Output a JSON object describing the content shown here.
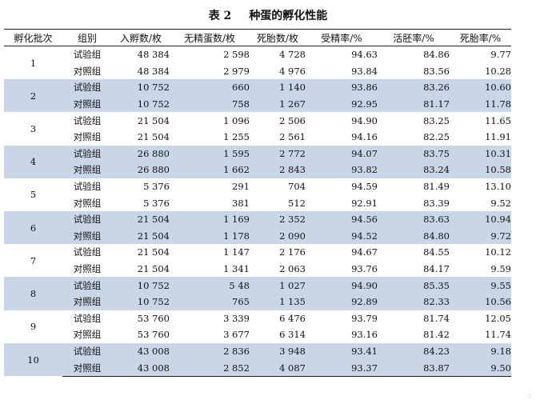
{
  "caption": {
    "number": "表 2",
    "title": "种蛋的孵化性能"
  },
  "headers": [
    "孵化批次",
    "组别",
    "入孵数/枚",
    "无精蛋数/枚",
    "死胎数/枚",
    "受精率/%",
    "活胚率/%",
    "死胎率/%"
  ],
  "batches": [
    {
      "batch": "1",
      "rows": [
        {
          "group": "试验组",
          "hatched": "48 384",
          "infertile": "2 598",
          "dead": "4 728",
          "fertility": "94.63",
          "live_embryo": "84.86",
          "mortality": "9.77"
        },
        {
          "group": "对照组",
          "hatched": "48 384",
          "infertile": "2 979",
          "dead": "4 976",
          "fertility": "93.84",
          "live_embryo": "83.56",
          "mortality": "10.28"
        }
      ]
    },
    {
      "batch": "2",
      "rows": [
        {
          "group": "试验组",
          "hatched": "10 752",
          "infertile": "660",
          "dead": "1 140",
          "fertility": "93.86",
          "live_embryo": "83.26",
          "mortality": "10.60"
        },
        {
          "group": "对照组",
          "hatched": "10 752",
          "infertile": "758",
          "dead": "1 267",
          "fertility": "92.95",
          "live_embryo": "81.17",
          "mortality": "11.78"
        }
      ]
    },
    {
      "batch": "3",
      "rows": [
        {
          "group": "试验组",
          "hatched": "21 504",
          "infertile": "1 096",
          "dead": "2 506",
          "fertility": "94.90",
          "live_embryo": "83.25",
          "mortality": "11.65"
        },
        {
          "group": "对照组",
          "hatched": "21 504",
          "infertile": "1 255",
          "dead": "2 561",
          "fertility": "94.16",
          "live_embryo": "82.25",
          "mortality": "11.91"
        }
      ]
    },
    {
      "batch": "4",
      "rows": [
        {
          "group": "试验组",
          "hatched": "26 880",
          "infertile": "1 595",
          "dead": "2 772",
          "fertility": "94.07",
          "live_embryo": "83.75",
          "mortality": "10.31"
        },
        {
          "group": "对照组",
          "hatched": "26 880",
          "infertile": "1 662",
          "dead": "2 843",
          "fertility": "93.82",
          "live_embryo": "83.24",
          "mortality": "10.58"
        }
      ]
    },
    {
      "batch": "5",
      "rows": [
        {
          "group": "试验组",
          "hatched": "5 376",
          "infertile": "291",
          "dead": "704",
          "fertility": "94.59",
          "live_embryo": "81.49",
          "mortality": "13.10"
        },
        {
          "group": "对照组",
          "hatched": "5 376",
          "infertile": "381",
          "dead": "512",
          "fertility": "92.91",
          "live_embryo": "83.39",
          "mortality": "9.52"
        }
      ]
    },
    {
      "batch": "6",
      "rows": [
        {
          "group": "试验组",
          "hatched": "21 504",
          "infertile": "1 169",
          "dead": "2 352",
          "fertility": "94.56",
          "live_embryo": "83.63",
          "mortality": "10.94"
        },
        {
          "group": "对照组",
          "hatched": "21 504",
          "infertile": "1 178",
          "dead": "2 090",
          "fertility": "94.52",
          "live_embryo": "84.80",
          "mortality": "9.72"
        }
      ]
    },
    {
      "batch": "7",
      "rows": [
        {
          "group": "试验组",
          "hatched": "21 504",
          "infertile": "1 147",
          "dead": "2 176",
          "fertility": "94.67",
          "live_embryo": "84.55",
          "mortality": "10.12"
        },
        {
          "group": "对照组",
          "hatched": "21 504",
          "infertile": "1 341",
          "dead": "2 063",
          "fertility": "93.76",
          "live_embryo": "84.17",
          "mortality": "9.59"
        }
      ]
    },
    {
      "batch": "8",
      "rows": [
        {
          "group": "试验组",
          "hatched": "10 752",
          "infertile": "5 48",
          "dead": "1 027",
          "fertility": "94.90",
          "live_embryo": "85.35",
          "mortality": "9.55"
        },
        {
          "group": "对照组",
          "hatched": "10 752",
          "infertile": "765",
          "dead": "1 135",
          "fertility": "92.89",
          "live_embryo": "82.33",
          "mortality": "10.56"
        }
      ]
    },
    {
      "batch": "9",
      "rows": [
        {
          "group": "试验组",
          "hatched": "53 760",
          "infertile": "3 339",
          "dead": "6 476",
          "fertility": "93.79",
          "live_embryo": "81.74",
          "mortality": "12.05"
        },
        {
          "group": "对照组",
          "hatched": "53 760",
          "infertile": "3 677",
          "dead": "6 314",
          "fertility": "93.16",
          "live_embryo": "81.42",
          "mortality": "11.74"
        }
      ]
    },
    {
      "batch": "10",
      "rows": [
        {
          "group": "试验组",
          "hatched": "43 008",
          "infertile": "2 836",
          "dead": "3 948",
          "fertility": "93.41",
          "live_embryo": "84.23",
          "mortality": "9.18"
        },
        {
          "group": "对照组",
          "hatched": "43 008",
          "infertile": "2 852",
          "dead": "4 087",
          "fertility": "93.37",
          "live_embryo": "83.87",
          "mortality": "9.50"
        }
      ]
    }
  ],
  "colors": {
    "band": "#c9d6e8",
    "rule": "#222222"
  }
}
